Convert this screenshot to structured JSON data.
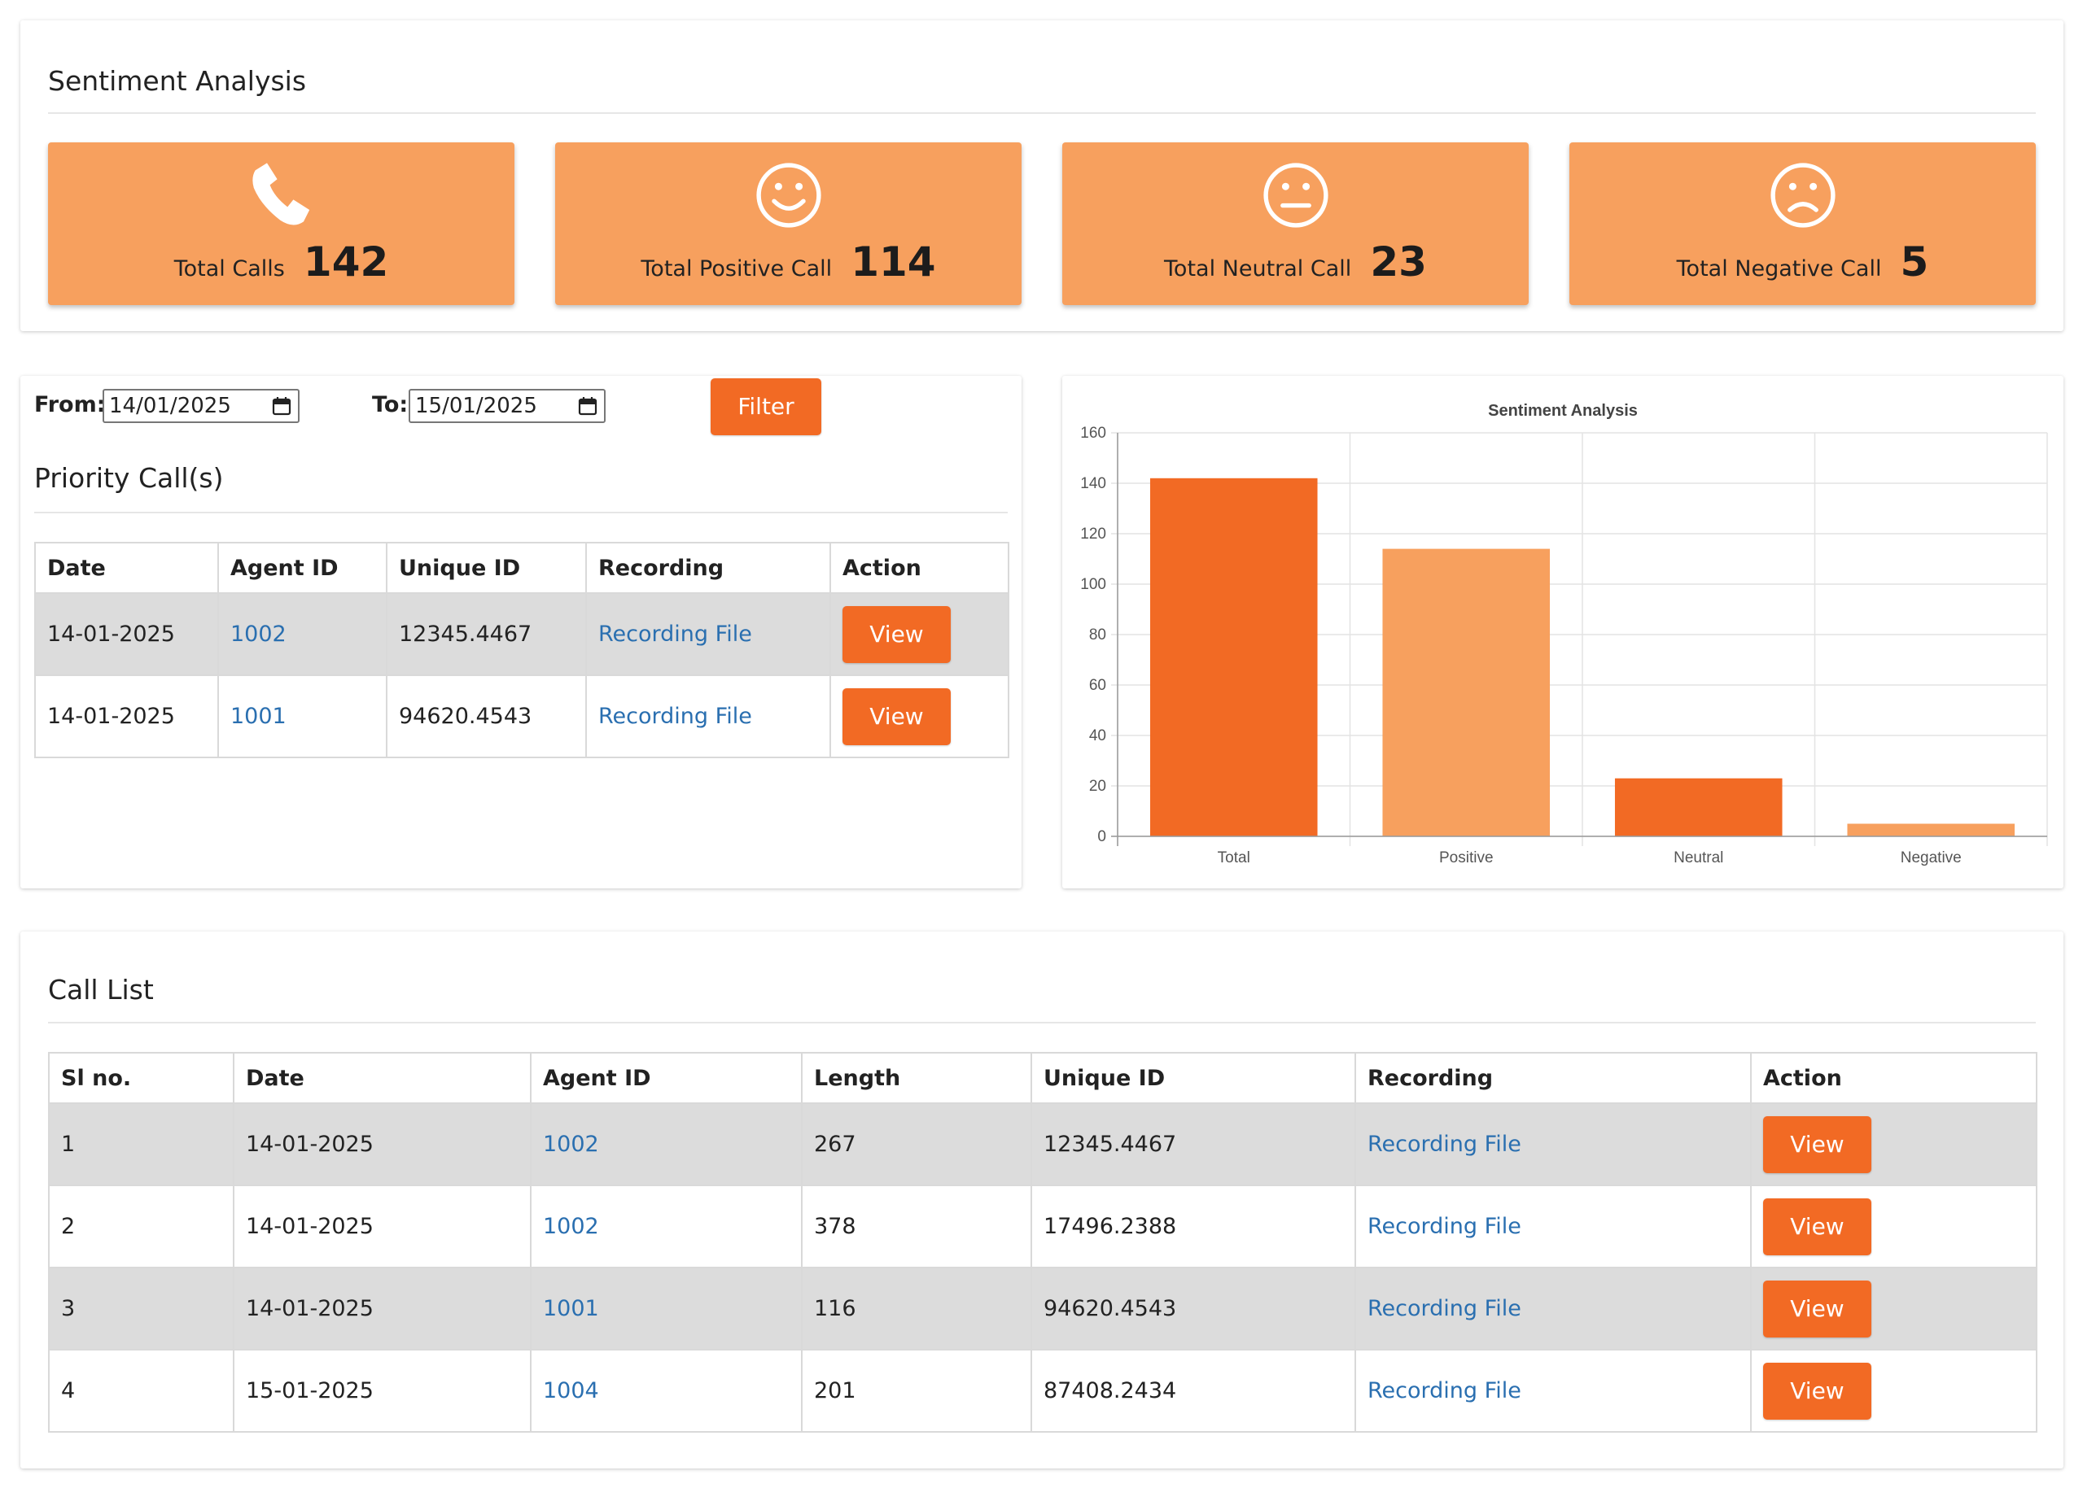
{
  "sentiment": {
    "title": "Sentiment Analysis",
    "cards": [
      {
        "label": "Total Calls",
        "value": "142",
        "icon": "phone-icon"
      },
      {
        "label": "Total Positive Call",
        "value": "114",
        "icon": "smile-icon"
      },
      {
        "label": "Total Neutral Call",
        "value": "23",
        "icon": "neutral-face-icon"
      },
      {
        "label": "Total Negative Call",
        "value": "5",
        "icon": "sad-face-icon"
      }
    ],
    "card_color": "#f7a05e"
  },
  "filter": {
    "from_label": "From:",
    "from_value": "14/01/2025",
    "to_label": "To:",
    "to_value": "15/01/2025",
    "button_label": "Filter",
    "accent": "#f26a24"
  },
  "priority": {
    "title": "Priority Call(s)",
    "columns": [
      "Date",
      "Agent ID",
      "Unique ID",
      "Recording",
      "Action"
    ],
    "rows": [
      {
        "date": "14-01-2025",
        "agent": "1002",
        "uid": "12345.4467",
        "recording": "Recording File",
        "action": "View"
      },
      {
        "date": "14-01-2025",
        "agent": "1001",
        "uid": "94620.4543",
        "recording": "Recording File",
        "action": "View"
      }
    ]
  },
  "chart_data": {
    "type": "bar",
    "title": "Sentiment Analysis",
    "categories": [
      "Total",
      "Positive",
      "Neutral",
      "Negative"
    ],
    "values": [
      142,
      114,
      23,
      5
    ],
    "colors": [
      "#f26a24",
      "#f7a05e",
      "#f26a24",
      "#f7a05e"
    ],
    "ylim": [
      0,
      160
    ],
    "yticks": [
      0,
      20,
      40,
      60,
      80,
      100,
      120,
      140,
      160
    ],
    "grid": true,
    "xlabel": "",
    "ylabel": ""
  },
  "calllist": {
    "title": "Call List",
    "columns": [
      "Sl no.",
      "Date",
      "Agent ID",
      "Length",
      "Unique ID",
      "Recording",
      "Action"
    ],
    "rows": [
      {
        "sl": "1",
        "date": "14-01-2025",
        "agent": "1002",
        "length": "267",
        "uid": "12345.4467",
        "recording": "Recording File",
        "action": "View"
      },
      {
        "sl": "2",
        "date": "14-01-2025",
        "agent": "1002",
        "length": "378",
        "uid": "17496.2388",
        "recording": "Recording File",
        "action": "View"
      },
      {
        "sl": "3",
        "date": "14-01-2025",
        "agent": "1001",
        "length": "116",
        "uid": "94620.4543",
        "recording": "Recording File",
        "action": "View"
      },
      {
        "sl": "4",
        "date": "15-01-2025",
        "agent": "1004",
        "length": "201",
        "uid": "87408.2434",
        "recording": "Recording File",
        "action": "View"
      }
    ]
  }
}
